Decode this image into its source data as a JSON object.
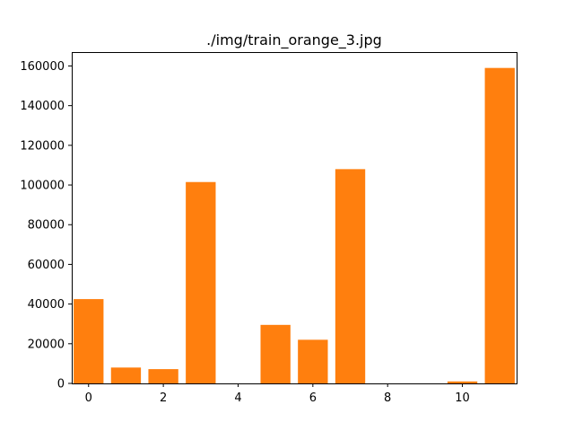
{
  "chart_data": {
    "type": "bar",
    "title": "./img/train_orange_3.jpg",
    "xlabel": "",
    "ylabel": "",
    "x": [
      0,
      1,
      2,
      3,
      4,
      5,
      6,
      7,
      8,
      9,
      10,
      11
    ],
    "values": [
      42500,
      8000,
      7200,
      101500,
      0,
      29500,
      22000,
      108000,
      0,
      0,
      1000,
      159000
    ],
    "xlim": [
      -0.45,
      11.45
    ],
    "ylim": [
      0,
      167000
    ],
    "xticks": [
      0,
      2,
      4,
      6,
      8,
      10
    ],
    "xtick_labels": [
      "0",
      "2",
      "4",
      "6",
      "8",
      "10"
    ],
    "yticks": [
      0,
      20000,
      40000,
      60000,
      80000,
      100000,
      120000,
      140000,
      160000
    ],
    "ytick_labels": [
      "0",
      "20000",
      "40000",
      "60000",
      "80000",
      "100000",
      "120000",
      "140000",
      "160000"
    ],
    "bar_width": 0.8,
    "bar_color": "#ff7f0e",
    "grid": false,
    "legend": false
  }
}
